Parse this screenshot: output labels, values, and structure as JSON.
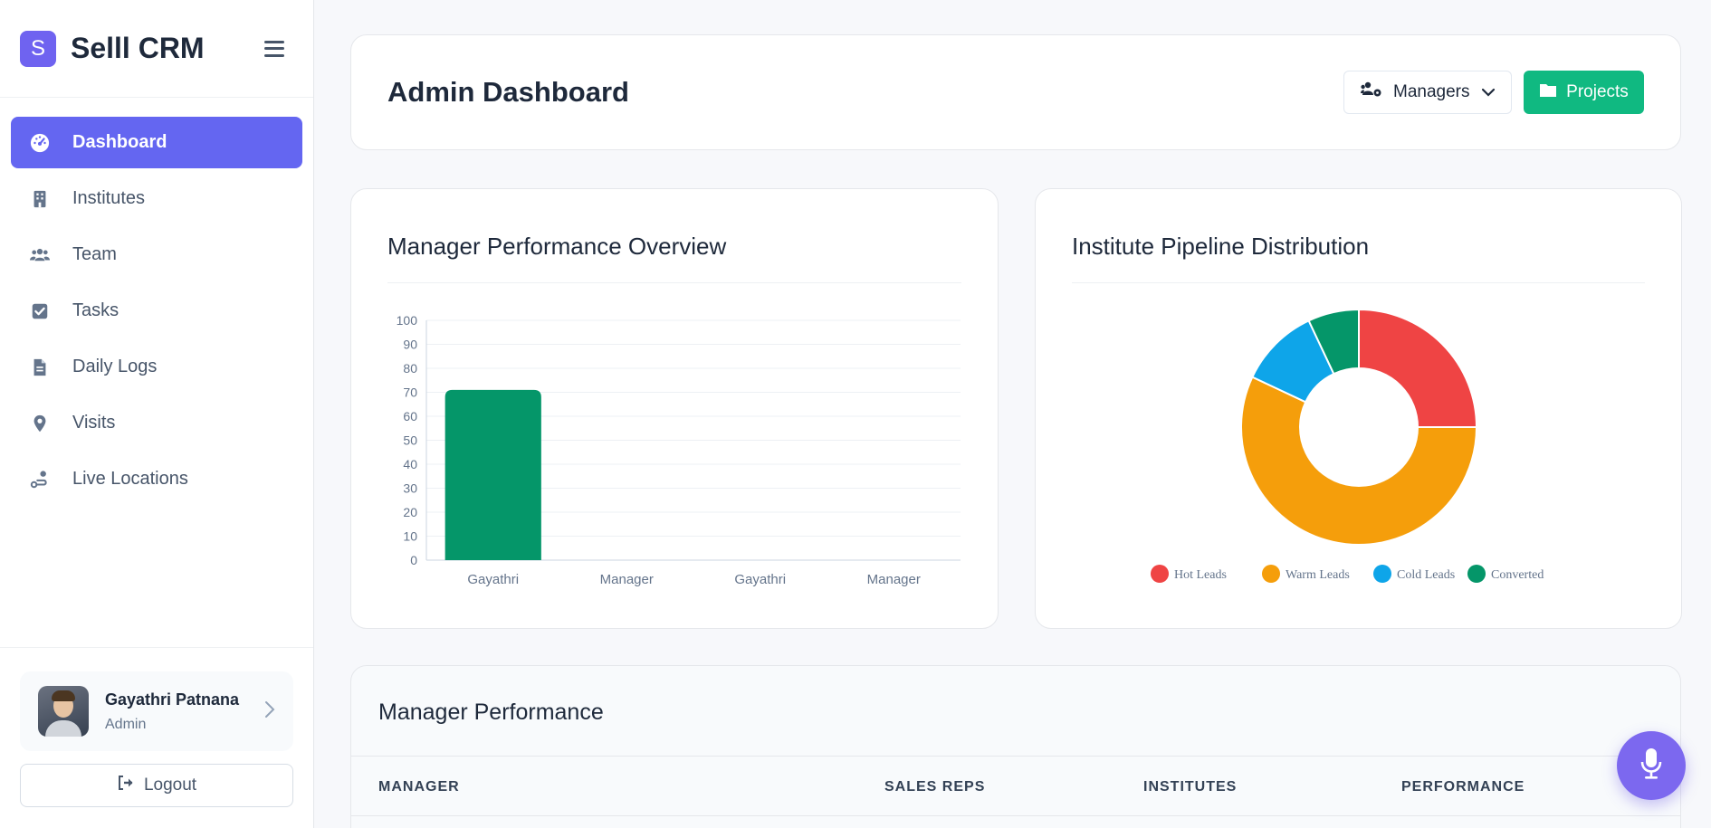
{
  "brand": {
    "logo_letter": "S",
    "name": "Selll CRM"
  },
  "sidebar": {
    "items": [
      {
        "label": "Dashboard",
        "icon": "gauge-icon",
        "active": true
      },
      {
        "label": "Institutes",
        "icon": "building-icon"
      },
      {
        "label": "Team",
        "icon": "users-icon"
      },
      {
        "label": "Tasks",
        "icon": "checkbox-icon"
      },
      {
        "label": "Daily Logs",
        "icon": "document-icon"
      },
      {
        "label": "Visits",
        "icon": "map-pin-icon"
      },
      {
        "label": "Live Locations",
        "icon": "route-icon"
      }
    ],
    "user": {
      "name": "Gayathri Patnana",
      "role": "Admin"
    },
    "logout_label": "Logout"
  },
  "header": {
    "title": "Admin Dashboard",
    "managers_label": "Managers",
    "projects_label": "Projects"
  },
  "performance_card": {
    "title": "Manager Performance Overview"
  },
  "pipeline_card": {
    "title": "Institute Pipeline Distribution"
  },
  "table": {
    "title": "Manager Performance",
    "columns": [
      "MANAGER",
      "SALES REPS",
      "INSTITUTES",
      "PERFORMANCE"
    ]
  },
  "colors": {
    "primary": "#6466f1",
    "success": "#10b981",
    "bar": "#059669",
    "hot": "#ef4444",
    "warm": "#f59e0b",
    "cold": "#0ea5e9",
    "converted": "#059669"
  },
  "chart_data": [
    {
      "type": "bar",
      "title": "Manager Performance Overview",
      "categories": [
        "Gayathri",
        "Manager",
        "Gayathri",
        "Manager"
      ],
      "values": [
        71,
        0,
        0,
        0
      ],
      "ylim": [
        0,
        100
      ],
      "yticks": [
        0,
        10,
        20,
        30,
        40,
        50,
        60,
        70,
        80,
        90,
        100
      ],
      "grid": true,
      "legend": "none"
    },
    {
      "type": "pie",
      "title": "Institute Pipeline Distribution",
      "donut": true,
      "labels": [
        "Hot Leads",
        "Warm Leads",
        "Cold Leads",
        "Converted"
      ],
      "values": [
        25,
        57,
        11,
        7
      ],
      "legend": "bottom"
    }
  ]
}
